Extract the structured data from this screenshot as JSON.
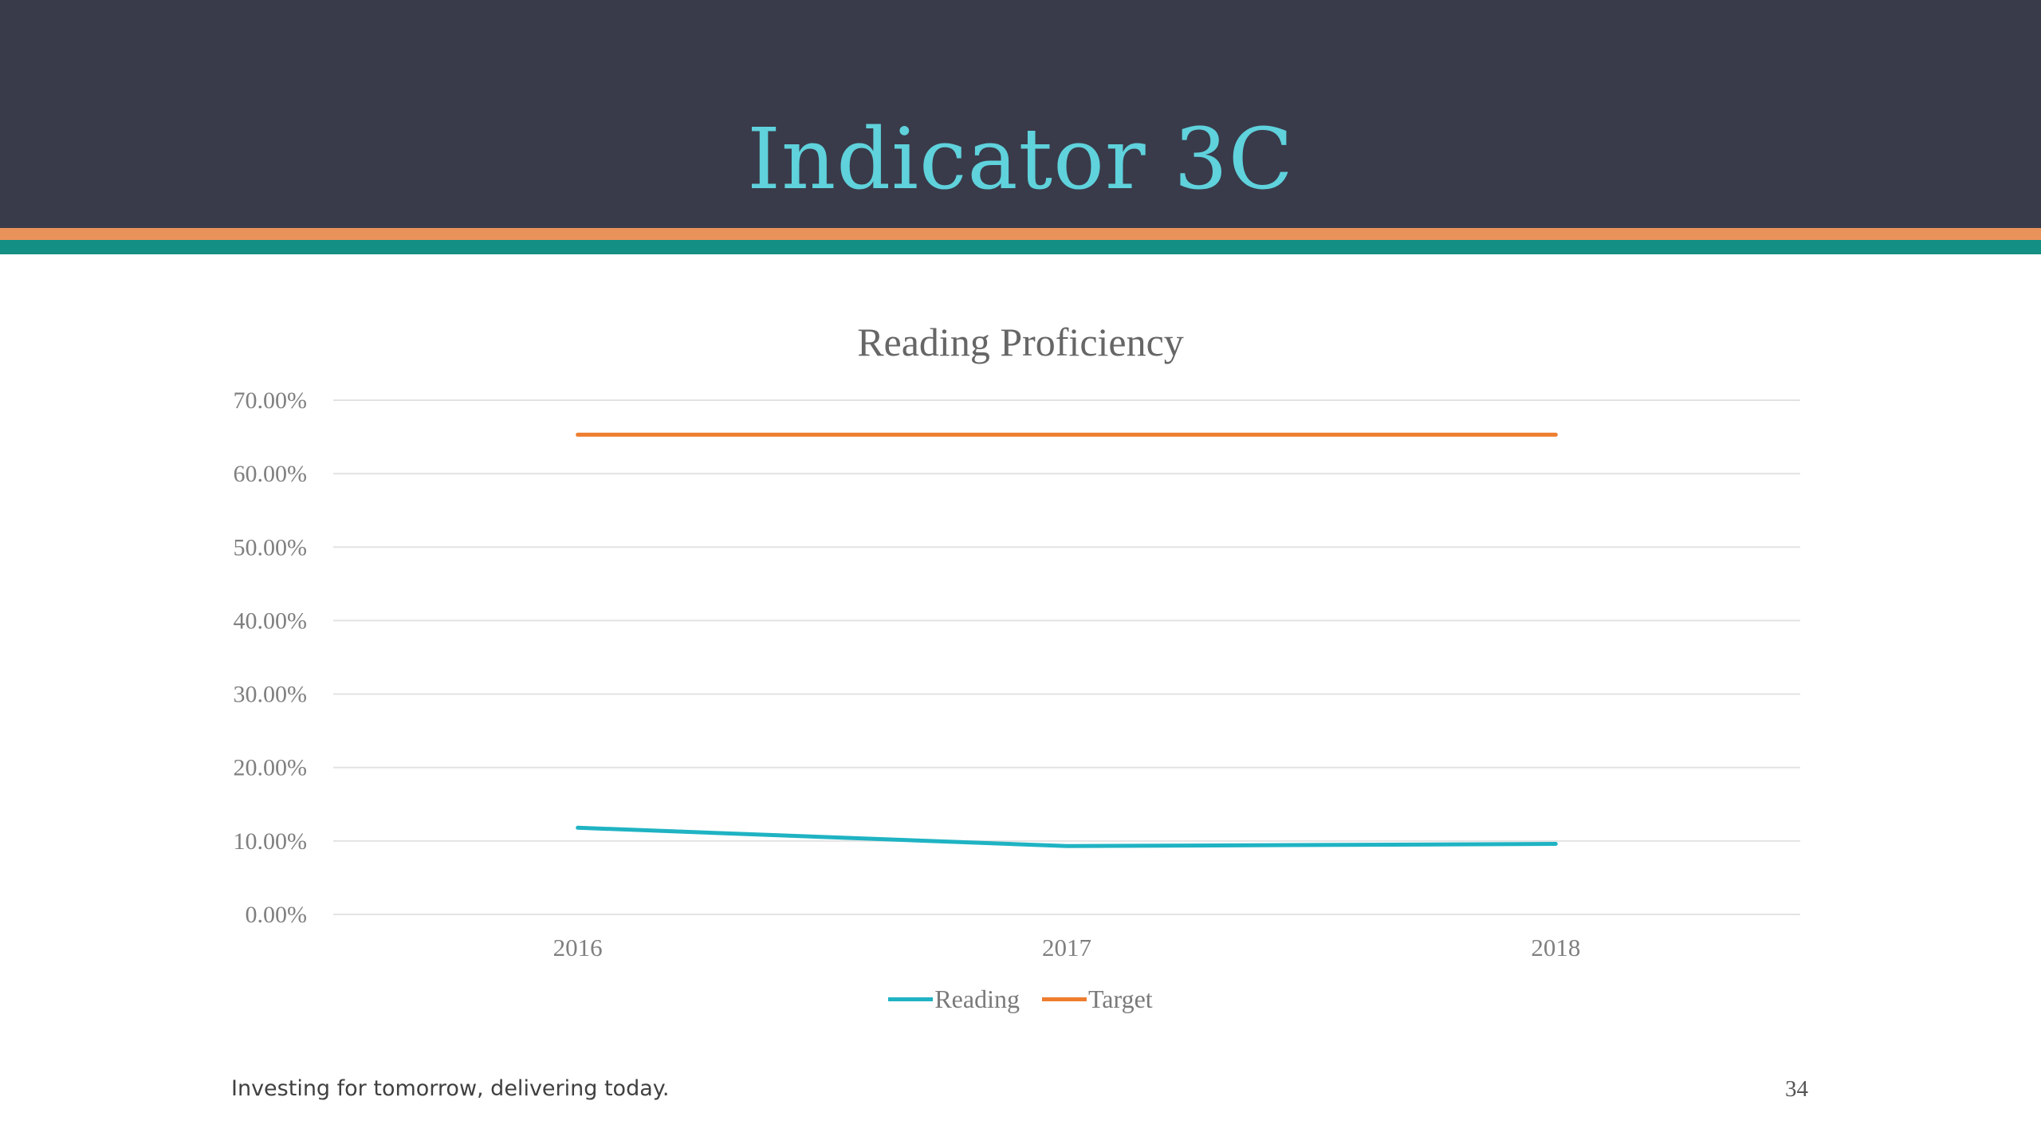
{
  "slide": {
    "title": "Indicator 3C",
    "footer": "Investing for tomorrow, delivering today.",
    "page_number": "34"
  },
  "colors": {
    "header_bg": "#393b4a",
    "title": "#5fd2dc",
    "stripe_orange": "#e9925a",
    "stripe_teal": "#138f84"
  },
  "chart_data": {
    "type": "line",
    "title": "Reading Proficiency",
    "categories": [
      "2016",
      "2017",
      "2018"
    ],
    "ylim": [
      0,
      70
    ],
    "yticks": [
      "0.00%",
      "10.00%",
      "20.00%",
      "30.00%",
      "40.00%",
      "50.00%",
      "60.00%",
      "70.00%"
    ],
    "grid": true,
    "legend_position": "bottom",
    "series": [
      {
        "name": "Reading",
        "values": [
          11.8,
          9.3,
          9.6
        ],
        "color": "#1fb3c3"
      },
      {
        "name": "Target",
        "values": [
          65.3,
          65.3,
          65.3
        ],
        "color": "#ee7d2f"
      }
    ]
  }
}
